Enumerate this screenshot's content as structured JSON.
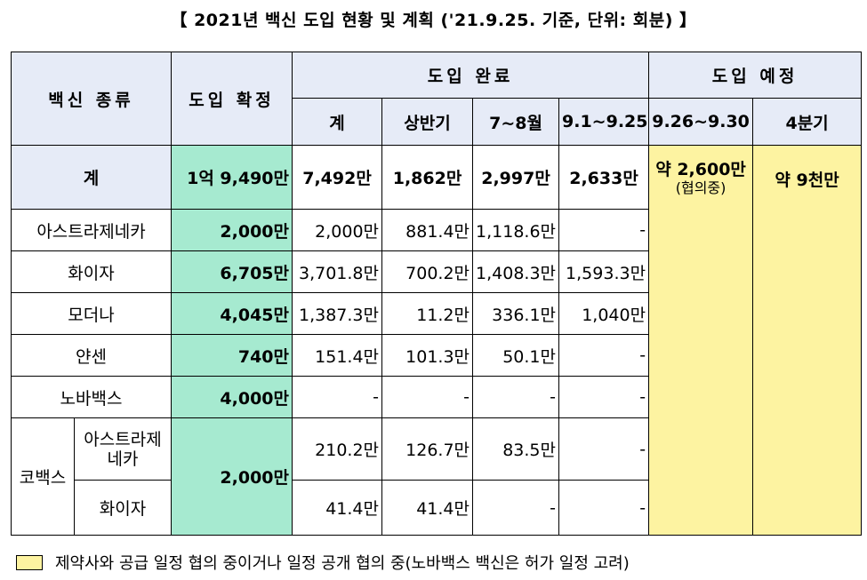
{
  "title": "【 2021년 백신 도입 현황 및 계획 ('21.9.25. 기준, 단위: 회분) 】",
  "headers": {
    "vaccine_type": "백신 종류",
    "confirmed": "도입 확정",
    "completed": "도입 완료",
    "planned": "도입 예정",
    "sub_total": "계",
    "sub_h1": "상반기",
    "sub_jul_aug": "7~8월",
    "sub_sep": "9.1~9.25",
    "sub_late_sep": "9.26~9.30",
    "sub_q4": "4분기"
  },
  "total": {
    "label": "계",
    "confirmed": "1억 9,490만",
    "completed_total": "7,492만",
    "h1": "1,862만",
    "jul_aug": "2,997만",
    "sep": "2,633만",
    "late_sep": "약 2,600만",
    "late_sep_note": "(협의중)",
    "q4": "약 9천만"
  },
  "rows": [
    {
      "name": "아스트라제네카",
      "confirmed": "2,000만",
      "total": "2,000만",
      "h1": "881.4만",
      "jul_aug": "1,118.6만",
      "sep": "-"
    },
    {
      "name": "화이자",
      "confirmed": "6,705만",
      "total": "3,701.8만",
      "h1": "700.2만",
      "jul_aug": "1,408.3만",
      "sep": "1,593.3만"
    },
    {
      "name": "모더나",
      "confirmed": "4,045만",
      "total": "1,387.3만",
      "h1": "11.2만",
      "jul_aug": "336.1만",
      "sep": "1,040만"
    },
    {
      "name": "얀센",
      "confirmed": "740만",
      "total": "151.4만",
      "h1": "101.3만",
      "jul_aug": "50.1만",
      "sep": "-"
    },
    {
      "name": "노바백스",
      "confirmed": "4,000만",
      "total": "-",
      "h1": "-",
      "jul_aug": "-",
      "sep": "-"
    }
  ],
  "covax": {
    "label": "코백스",
    "confirmed": "2,000만",
    "sub1": {
      "name": "아스트라제네카",
      "total": "210.2만",
      "h1": "126.7만",
      "jul_aug": "83.5만",
      "sep": "-"
    },
    "sub2": {
      "name": "화이자",
      "total": "41.4만",
      "h1": "41.4만",
      "jul_aug": "-",
      "sep": "-"
    }
  },
  "legend": {
    "text": "제약사와 공급 일정 협의 중이거나 일정 공개 협의 중(노바백스 백신은 허가 일정 고려)",
    "color": "#fdf3a1"
  }
}
